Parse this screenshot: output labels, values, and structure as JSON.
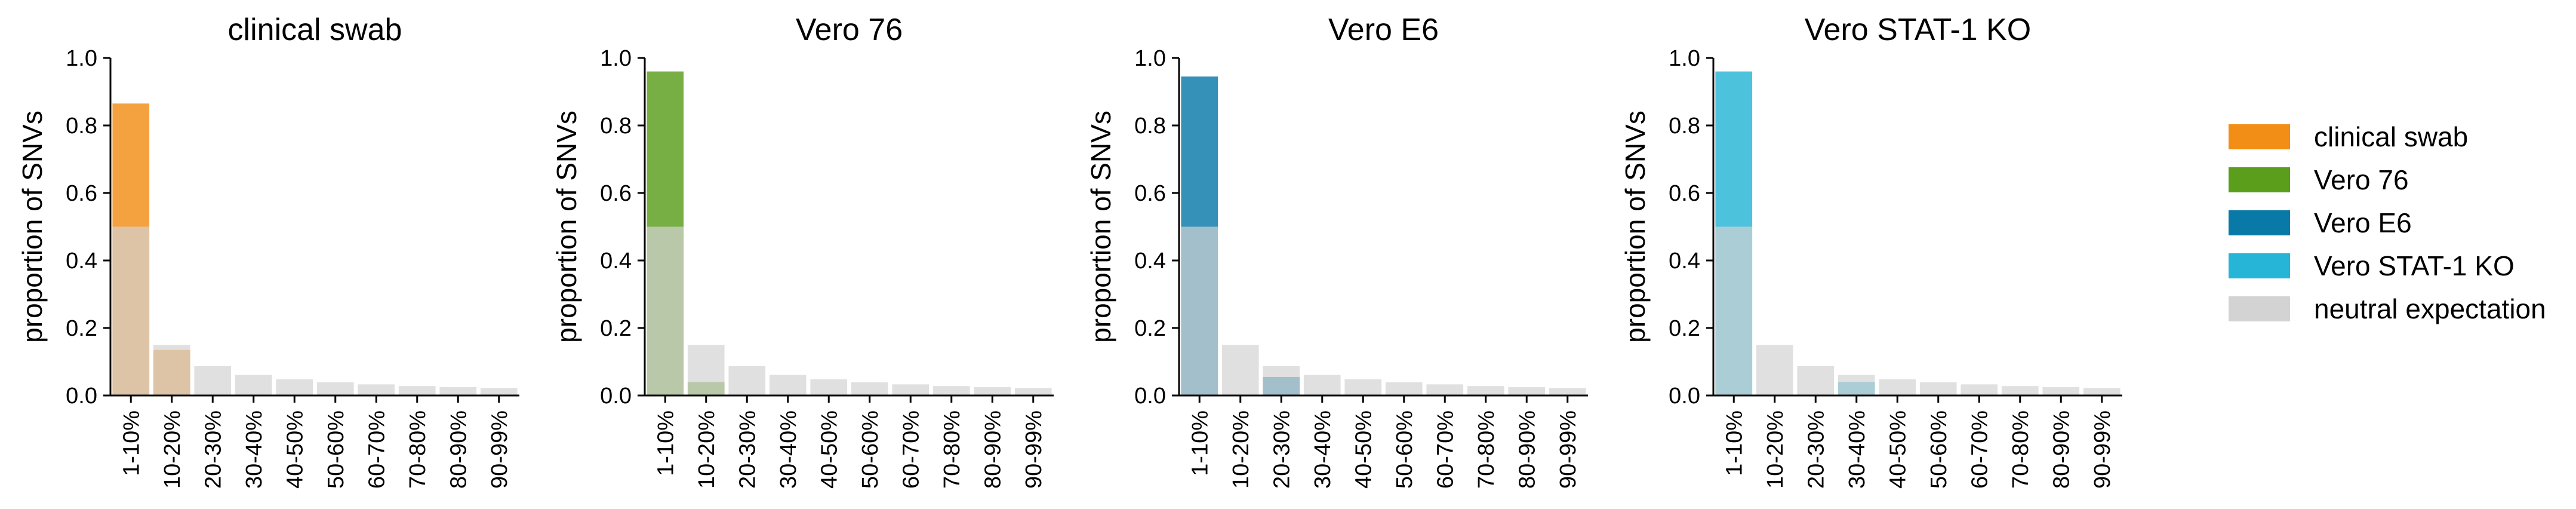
{
  "chart_data": {
    "type": "bar",
    "categories": [
      "1-10%",
      "10-20%",
      "20-30%",
      "30-40%",
      "40-50%",
      "50-60%",
      "60-70%",
      "70-80%",
      "80-90%",
      "90-99%"
    ],
    "ylabel": "proportion of SNVs",
    "ylim": [
      0,
      1
    ],
    "yticks": [
      "0.0",
      "0.2",
      "0.4",
      "0.6",
      "0.8",
      "1.0"
    ],
    "neutral_expectation": [
      0.5,
      0.15,
      0.087,
      0.061,
      0.048,
      0.039,
      0.033,
      0.028,
      0.025,
      0.022
    ],
    "neutral_color": "#d3d3d3",
    "panels": [
      {
        "title": "clinical swab",
        "color": "#f28e16",
        "values": [
          0.865,
          0.135,
          0,
          0,
          0,
          0,
          0,
          0,
          0,
          0
        ]
      },
      {
        "title": "Vero 76",
        "color": "#5a9e1c",
        "values": [
          0.96,
          0.04,
          0,
          0,
          0,
          0,
          0,
          0,
          0,
          0
        ]
      },
      {
        "title": "Vero E6",
        "color": "#0979a8",
        "values": [
          0.945,
          0,
          0.055,
          0,
          0,
          0,
          0,
          0,
          0,
          0
        ]
      },
      {
        "title": "Vero STAT-1 KO",
        "color": "#26b5d6",
        "values": [
          0.96,
          0,
          0,
          0.04,
          0,
          0,
          0,
          0,
          0,
          0
        ]
      }
    ],
    "legend": {
      "position": "right",
      "items": [
        {
          "label": "clinical swab",
          "color": "#f28e16"
        },
        {
          "label": "Vero 76",
          "color": "#5a9e1c"
        },
        {
          "label": "Vero E6",
          "color": "#0979a8"
        },
        {
          "label": "Vero STAT-1 KO",
          "color": "#26b5d6"
        },
        {
          "label": "neutral expectation",
          "color": "#d3d3d3"
        }
      ]
    }
  }
}
